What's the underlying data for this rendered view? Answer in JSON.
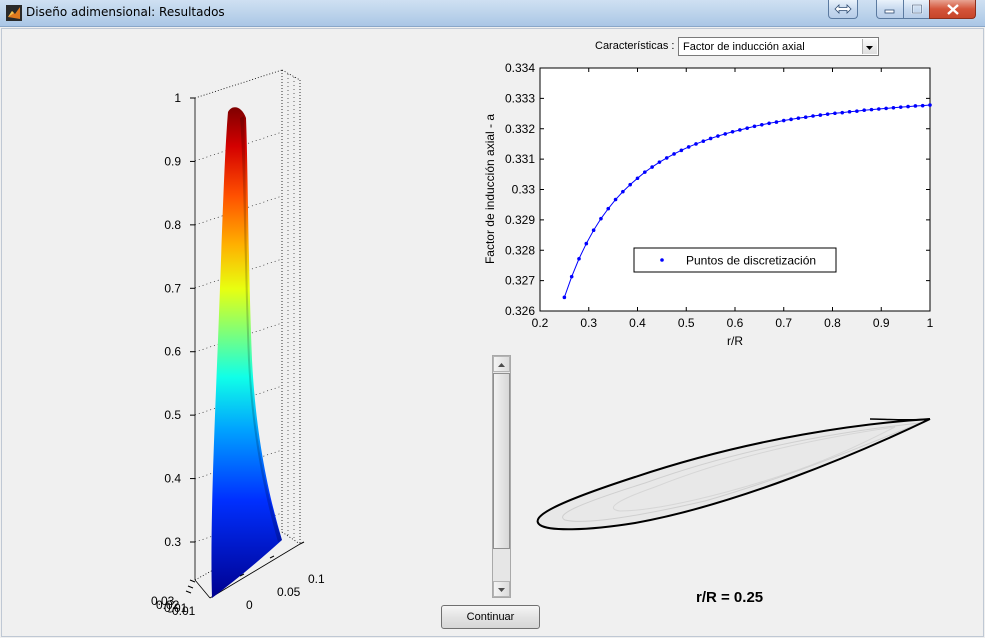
{
  "window": {
    "title": "Diseño adimensional: Resultados"
  },
  "controls": {
    "characteristics_label": "Características :",
    "characteristics_value": "Factor de inducción axial",
    "continue_label": "Continuar"
  },
  "chart_data": {
    "type": "line",
    "xlabel": "r/R",
    "ylabel": "Factor de inducción axial - a",
    "xlim": [
      0.2,
      1.0
    ],
    "ylim": [
      0.326,
      0.334
    ],
    "xticks": [
      "0.2",
      "0.3",
      "0.4",
      "0.5",
      "0.6",
      "0.7",
      "0.8",
      "0.9",
      "1"
    ],
    "yticks": [
      "0.326",
      "0.327",
      "0.328",
      "0.329",
      "0.33",
      "0.331",
      "0.332",
      "0.333",
      "0.334"
    ],
    "grid": false,
    "legend_placement": "center",
    "series": [
      {
        "name": "Puntos de discretización",
        "color": "#0000ff",
        "marker": "dot",
        "x": [
          0.25,
          0.265,
          0.28,
          0.295,
          0.31,
          0.325,
          0.34,
          0.355,
          0.37,
          0.385,
          0.4,
          0.415,
          0.43,
          0.445,
          0.46,
          0.475,
          0.49,
          0.505,
          0.52,
          0.535,
          0.55,
          0.565,
          0.58,
          0.595,
          0.61,
          0.625,
          0.64,
          0.655,
          0.67,
          0.685,
          0.7,
          0.715,
          0.73,
          0.745,
          0.76,
          0.775,
          0.79,
          0.805,
          0.82,
          0.835,
          0.85,
          0.865,
          0.88,
          0.895,
          0.91,
          0.925,
          0.94,
          0.955,
          0.97,
          0.985,
          1.0
        ],
        "y": [
          0.32645,
          0.32713,
          0.32772,
          0.32822,
          0.32866,
          0.32904,
          0.32937,
          0.32967,
          0.32993,
          0.33016,
          0.33037,
          0.33057,
          0.33074,
          0.3309,
          0.33104,
          0.33117,
          0.33129,
          0.3314,
          0.3315,
          0.33159,
          0.33168,
          0.33176,
          0.33183,
          0.3319,
          0.33196,
          0.33202,
          0.33208,
          0.33213,
          0.33218,
          0.33222,
          0.33227,
          0.33231,
          0.33235,
          0.33238,
          0.33242,
          0.33245,
          0.33248,
          0.33251,
          0.33253,
          0.33256,
          0.33258,
          0.33261,
          0.33263,
          0.33265,
          0.33267,
          0.33269,
          0.33271,
          0.33273,
          0.33275,
          0.33276,
          0.33278
        ]
      }
    ]
  },
  "blade_plot": {
    "z_ticks": [
      "1",
      "0.9",
      "0.8",
      "0.7",
      "0.6",
      "0.5",
      "0.4",
      "0.3"
    ],
    "x_ticks": [
      "0",
      "0.05",
      "0.1"
    ],
    "y_ticks_overlap": "0.03",
    "y_ticks_overlap_b": "0.02",
    "y_ticks_overlap_c": "0.01",
    "y_ticks_overlap_d": "-0.01",
    "colormap": "jet"
  },
  "airfoil": {
    "label": "r/R = 0.25"
  }
}
